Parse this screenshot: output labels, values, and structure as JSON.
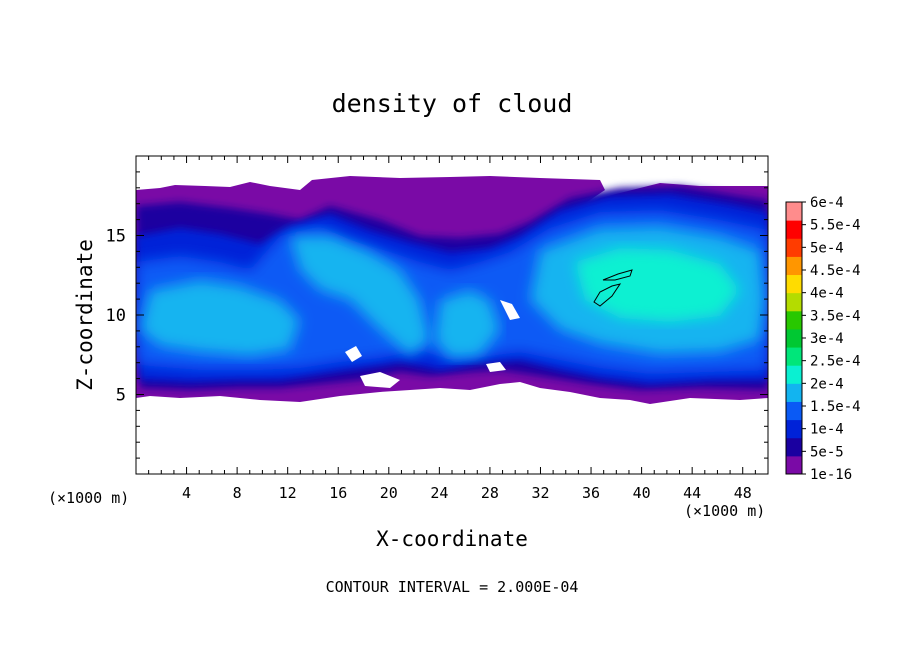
{
  "chart_data": {
    "type": "heatmap",
    "title": "density of cloud",
    "xlabel": "X-coordinate",
    "ylabel": "Z-coordinate",
    "x_unit": "(×1000 m)",
    "xlim": [
      0,
      50
    ],
    "ylim": [
      0,
      20
    ],
    "x_ticks": [
      4,
      8,
      12,
      16,
      20,
      24,
      28,
      32,
      36,
      40,
      44,
      48
    ],
    "y_ticks": [
      5,
      10,
      15
    ],
    "footer": "CONTOUR INTERVAL = 2.000E-04",
    "colorbar": {
      "labels": [
        "1e-16",
        "5e-5",
        "1e-4",
        "1.5e-4",
        "2e-4",
        "2.5e-4",
        "3e-4",
        "3.5e-4",
        "4e-4",
        "4.5e-4",
        "5e-4",
        "5.5e-4",
        "6e-4"
      ],
      "colors": [
        "#7a0aa6",
        "#1a00a0",
        "#0022d8",
        "#0a5af5",
        "#12b4f0",
        "#0af0d2",
        "#00e67a",
        "#00c832",
        "#28c800",
        "#b4dc00",
        "#ffdc00",
        "#ff9600",
        "#ff3c00",
        "#ff0000",
        "#ff8c8c"
      ]
    },
    "cloud_layer": {
      "base_z": 4.8,
      "top_z": 18.0,
      "max_density_region": {
        "x": [
          36,
          38
        ],
        "z": [
          10.5,
          13
        ]
      }
    },
    "grid": false
  }
}
